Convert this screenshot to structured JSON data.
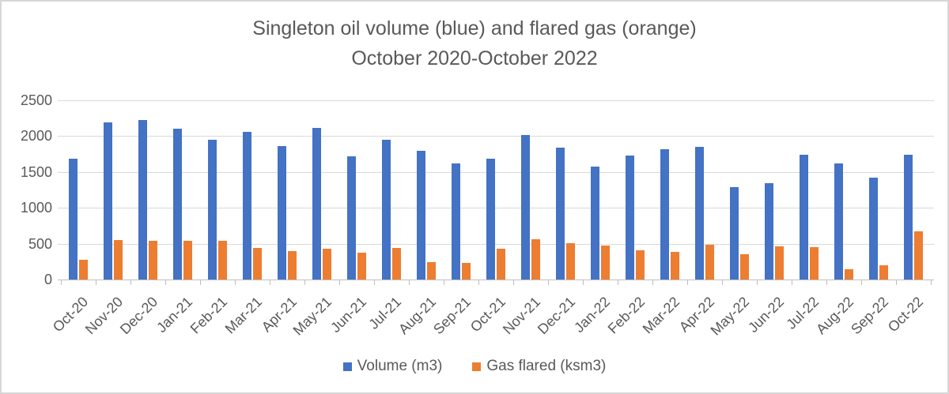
{
  "title": {
    "line1": "Singleton oil volume (blue) and flared gas (orange)",
    "line2": "October 2020-October 2022"
  },
  "colors": {
    "volume_blue": "#4472C4",
    "gas_orange": "#ED7D31",
    "text_gray": "#595959",
    "gridline_gray": "#D9D9D9"
  },
  "chart_data": {
    "type": "bar",
    "title": "Singleton oil volume (blue) and flared gas (orange) October 2020-October 2022",
    "categories": [
      "Oct-20",
      "Nov-20",
      "Dec-20",
      "Jan-21",
      "Feb-21",
      "Mar-21",
      "Apr-21",
      "May-21",
      "Jun-21",
      "Jul-21",
      "Aug-21",
      "Sep-21",
      "Oct-21",
      "Nov-21",
      "Dec-21",
      "Jan-22",
      "Feb-22",
      "Mar-22",
      "Apr-22",
      "May-22",
      "Jun-22",
      "Jul-22",
      "Aug-22",
      "Sep-22",
      "Oct-22"
    ],
    "series": [
      {
        "name": "Volume (m3)",
        "color": "#4472C4",
        "values": [
          1690,
          2190,
          2230,
          2100,
          1950,
          2060,
          1860,
          2110,
          1715,
          1950,
          1790,
          1620,
          1690,
          2015,
          1840,
          1580,
          1730,
          1815,
          1845,
          1290,
          1340,
          1745,
          1620,
          1420,
          1745
        ]
      },
      {
        "name": "Gas flared (ksm3)",
        "color": "#ED7D31",
        "values": [
          280,
          550,
          545,
          540,
          535,
          440,
          400,
          430,
          375,
          445,
          245,
          235,
          425,
          565,
          510,
          470,
          410,
          390,
          490,
          350,
          460,
          455,
          140,
          200,
          670
        ]
      }
    ],
    "xlabel": "",
    "ylabel": "",
    "ylim": [
      0,
      2500
    ],
    "yticks": [
      0,
      500,
      1000,
      1500,
      2000,
      2500
    ],
    "grid": true,
    "legend_position": "bottom"
  }
}
